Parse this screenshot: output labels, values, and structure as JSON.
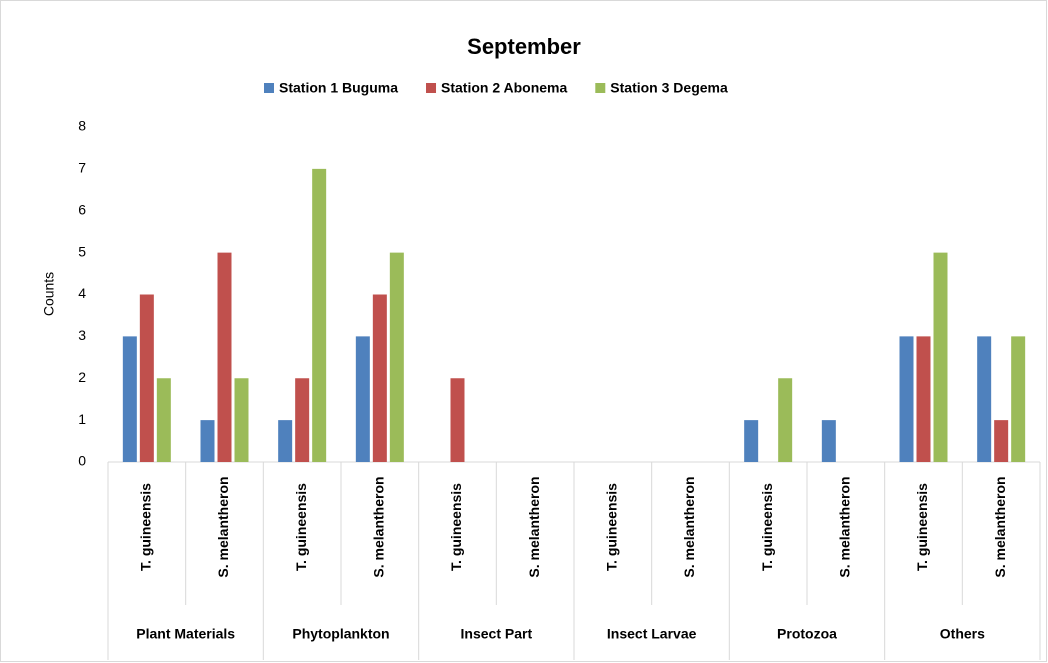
{
  "chart_data": {
    "type": "bar",
    "title": "September",
    "y_label": "Counts",
    "categories": [
      "T. guineensis",
      "S. melantheron",
      "T. guineensis",
      "S. melantheron",
      "T. guineensis",
      "S. melantheron",
      "T. guineensis",
      "S. melantheron",
      "T. guineensis",
      "S. melantheron",
      "T. guineensis",
      "S. melantheron"
    ],
    "groups": [
      "Plant Materials",
      "Phytoplankton",
      "Insect Part",
      "Insect Larvae",
      "Protozoa",
      "Others"
    ],
    "series": [
      {
        "name": "Station 1 Buguma",
        "color": "#4f81bd",
        "values": [
          3,
          1,
          1,
          3,
          0,
          0,
          0,
          0,
          1,
          1,
          3,
          3
        ]
      },
      {
        "name": "Station 2 Abonema",
        "color": "#c0504d",
        "values": [
          4,
          5,
          2,
          4,
          2,
          0,
          0,
          0,
          0,
          0,
          3,
          1
        ]
      },
      {
        "name": "Station 3 Degema",
        "color": "#9bbb59",
        "values": [
          2,
          2,
          7,
          5,
          0,
          0,
          0,
          0,
          2,
          0,
          5,
          3
        ]
      }
    ],
    "ylim": [
      0,
      8
    ],
    "yticks": [
      0,
      1,
      2,
      3,
      4,
      5,
      6,
      7,
      8
    ],
    "legend": "top"
  }
}
